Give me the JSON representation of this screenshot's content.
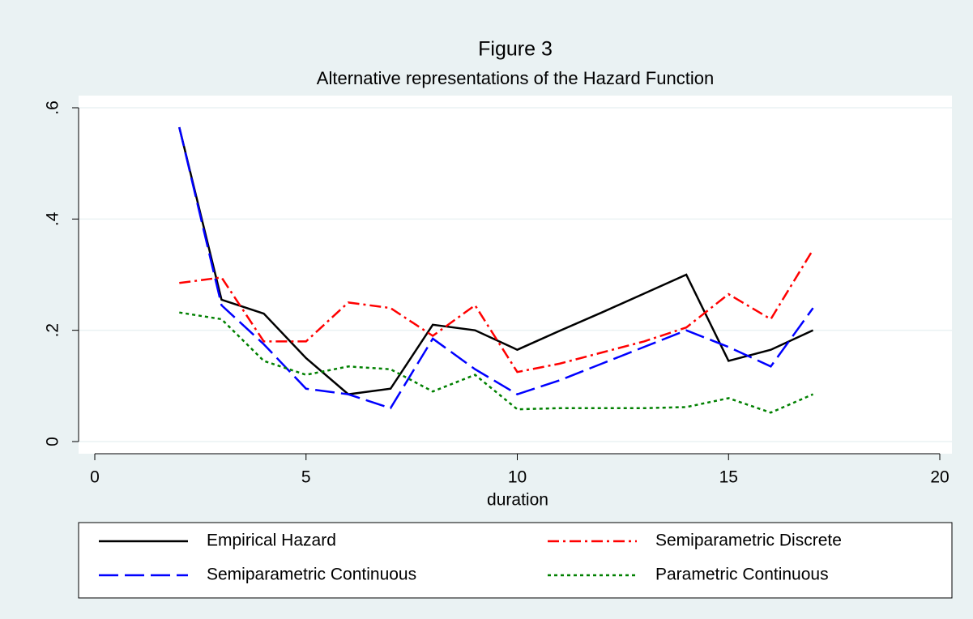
{
  "chart_data": {
    "type": "line",
    "title": "Figure 3",
    "subtitle": "Alternative representations of the Hazard Function",
    "x_label": "duration",
    "x": [
      2,
      3,
      4,
      5,
      6,
      7,
      8,
      9,
      10,
      11,
      12,
      13,
      14,
      15,
      16,
      17
    ],
    "series": [
      {
        "name": "Empirical Hazard",
        "color": "#000000",
        "style": "solid",
        "values": [
          0.565,
          0.255,
          0.23,
          0.15,
          0.085,
          0.095,
          0.21,
          0.2,
          0.165,
          0.199,
          0.232,
          0.266,
          0.3,
          0.145,
          0.165,
          0.2
        ]
      },
      {
        "name": "Semiparametric Discrete",
        "color": "#ff0000",
        "style": "dashdot",
        "values": [
          0.285,
          0.295,
          0.18,
          0.18,
          0.25,
          0.24,
          0.19,
          0.245,
          0.125,
          0.14,
          0.16,
          0.18,
          0.205,
          0.265,
          0.22,
          0.345
        ]
      },
      {
        "name": "Semiparametric Continuous",
        "color": "#0000ff",
        "style": "longdash",
        "values": [
          0.565,
          0.245,
          0.175,
          0.095,
          0.085,
          0.06,
          0.185,
          0.13,
          0.085,
          0.11,
          0.14,
          0.17,
          0.2,
          0.17,
          0.135,
          0.24
        ]
      },
      {
        "name": "Parametric Continuous",
        "color": "#008000",
        "style": "dot",
        "values": [
          0.232,
          0.22,
          0.145,
          0.12,
          0.135,
          0.13,
          0.09,
          0.12,
          0.058,
          0.06,
          0.06,
          0.06,
          0.062,
          0.078,
          0.052,
          0.085
        ]
      }
    ],
    "xlim": [
      0,
      20
    ],
    "xticks": [
      0,
      5,
      10,
      15,
      20
    ],
    "ylim": [
      0,
      0.6
    ],
    "yticks": [
      0,
      {
        "value": 0.2,
        "label": ".2"
      },
      {
        "value": 0.4,
        "label": ".4"
      },
      {
        "value": 0.6,
        "label": ".6"
      }
    ],
    "grid": true,
    "legend": "bottom"
  }
}
